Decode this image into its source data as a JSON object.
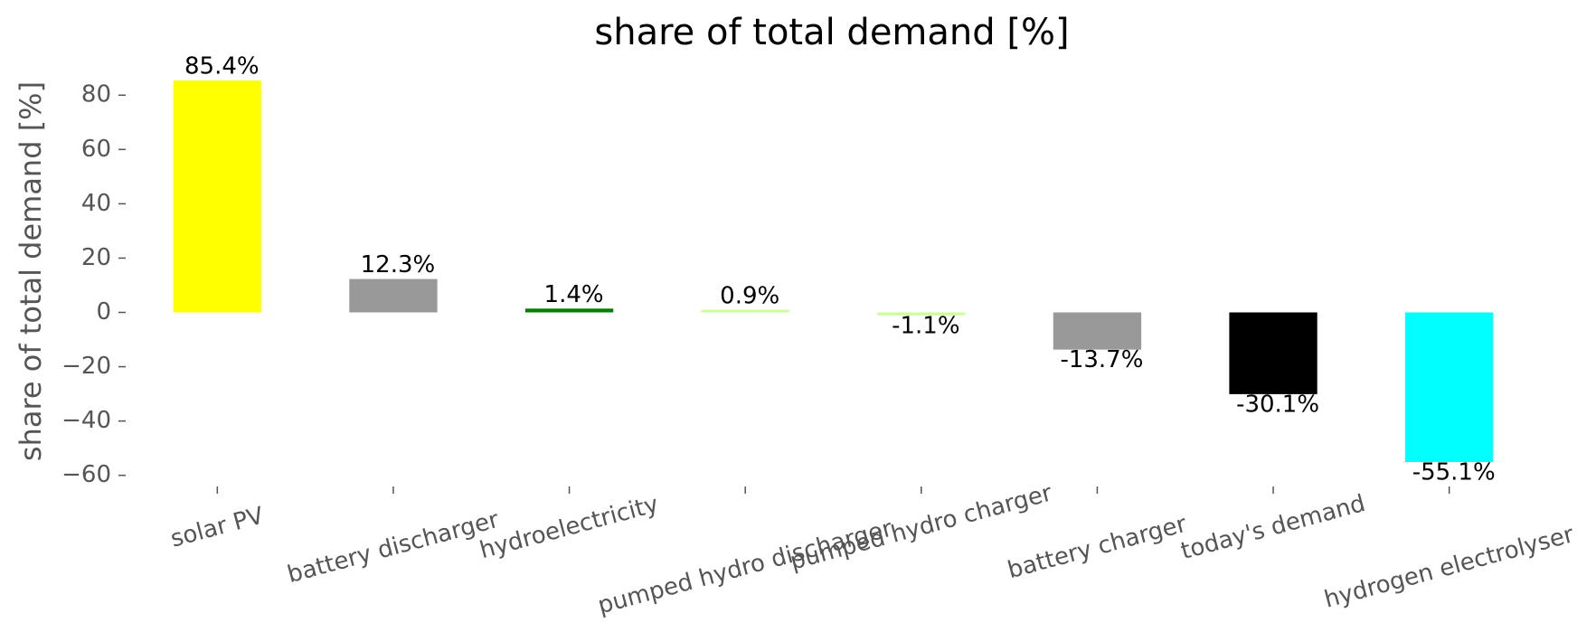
{
  "chart_data": {
    "type": "bar",
    "title": "share of total demand [%]",
    "ylabel": "share of total demand [%]",
    "categories": [
      "solar PV",
      "battery discharger",
      "hydroelectricity",
      "pumped hydro discharger",
      "pumped hydro charger",
      "battery charger",
      "today's demand",
      "hydrogen electrolyser"
    ],
    "values": [
      85.4,
      12.3,
      1.4,
      0.9,
      -1.1,
      -13.7,
      -30.1,
      -55.1
    ],
    "value_labels": [
      "85.4%",
      "12.3%",
      "1.4%",
      "0.9%",
      "-1.1%",
      "-13.7%",
      "-30.1%",
      "-55.1%"
    ],
    "colors": [
      "#ffff00",
      "#999999",
      "#008000",
      "#ccff99",
      "#ccff99",
      "#999999",
      "#000000",
      "#00ffff"
    ],
    "ylim": [
      -62.1,
      92.4
    ],
    "yticks": [
      {
        "value": -60,
        "label": "−60"
      },
      {
        "value": -40,
        "label": "−40"
      },
      {
        "value": -20,
        "label": "−20"
      },
      0,
      20,
      40,
      60,
      80
    ],
    "grid": false
  }
}
